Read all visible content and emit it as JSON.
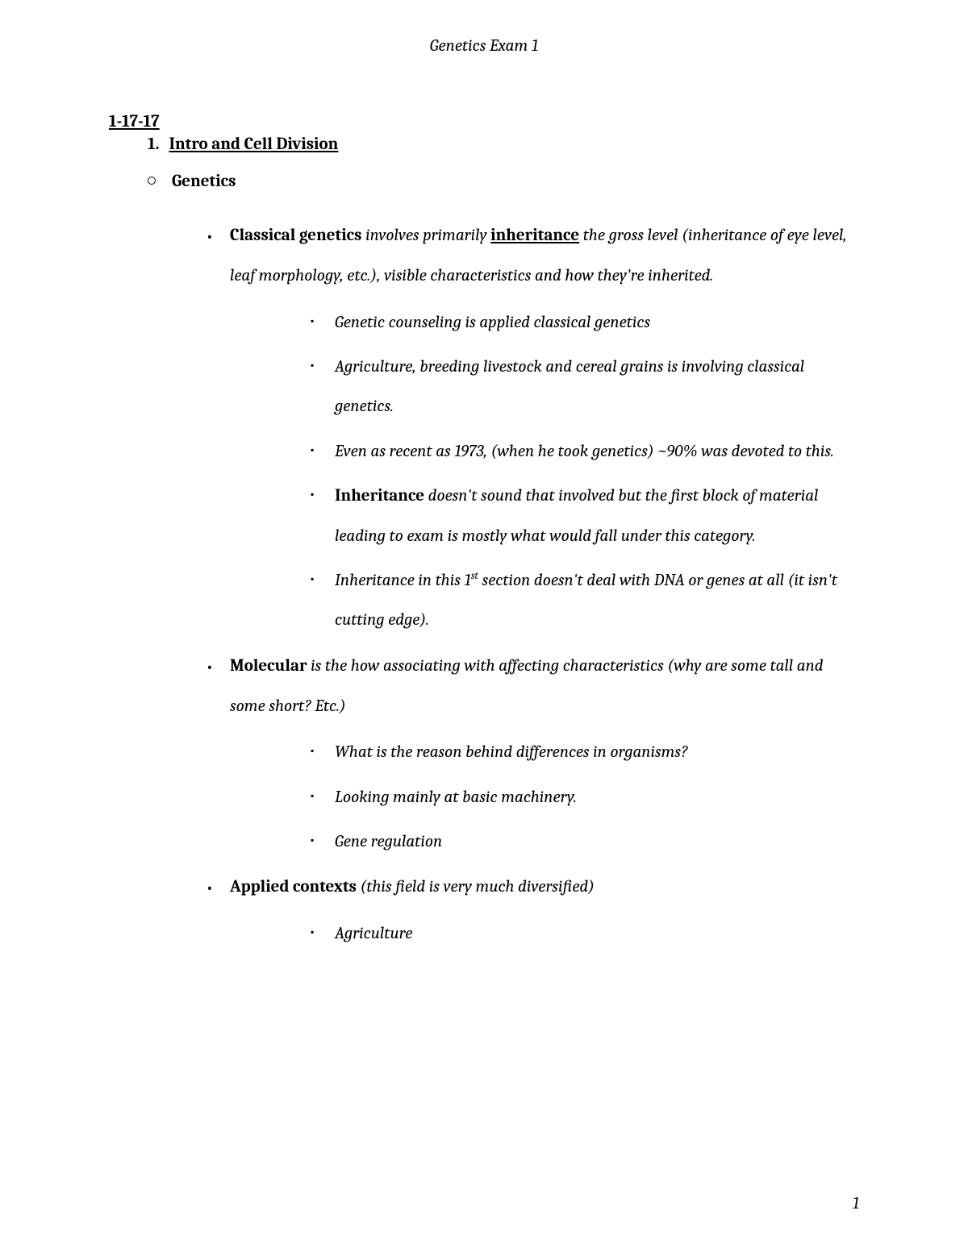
{
  "header": {
    "title": "Genetics Exam 1"
  },
  "date": "1-17-17",
  "section": {
    "number": "1.",
    "title": "Intro and Cell Division"
  },
  "topic": "Genetics",
  "bullets": [
    {
      "lead": "Classical genetics",
      "mid1": " involves primarily ",
      "underline": "inheritance",
      "rest": " the gross level (inheritance of eye level, leaf morphology, etc.), visible characteristics and how they're inherited.",
      "subs": [
        {
          "text": "Genetic counseling is applied classical genetics"
        },
        {
          "text": "Agriculture, breeding livestock and cereal grains is involving classical genetics."
        },
        {
          "text": "Even as recent as 1973, (when he took genetics) ~90% was devoted to this."
        },
        {
          "lead": "Inheritance",
          "text": " doesn't sound that involved but the first block of material leading to exam is mostly what would fall under this category."
        },
        {
          "pretext": "Inheritance in this 1",
          "sup": "st",
          "text": " section doesn't deal with DNA or genes at all (it isn't cutting edge)."
        }
      ]
    },
    {
      "lead": "Molecular",
      "rest": " is the how associating with affecting characteristics (why are some tall and some short? Etc.)",
      "subs": [
        {
          "text": "What is the reason behind differences in organisms?"
        },
        {
          "text": "Looking mainly at basic machinery."
        },
        {
          "text": "Gene regulation"
        }
      ]
    },
    {
      "lead": "Applied contexts",
      "rest": " (this field is very much diversified)",
      "subs": [
        {
          "text": "Agriculture"
        }
      ]
    }
  ],
  "pageNumber": "1"
}
